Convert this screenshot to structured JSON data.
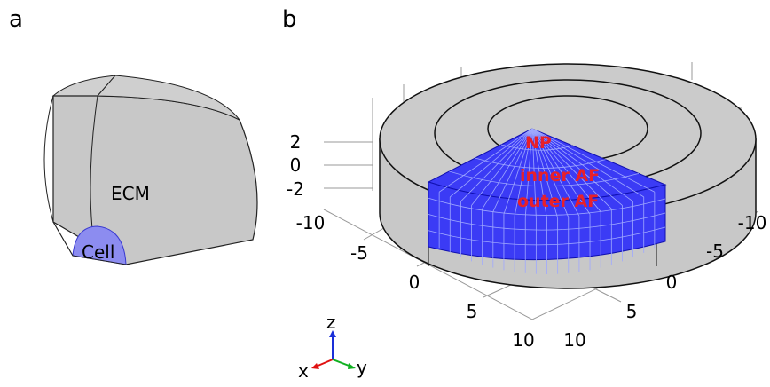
{
  "panel_a": {
    "label": "a",
    "region_outer": "ECM",
    "region_inner": "Cell"
  },
  "panel_b": {
    "label": "b",
    "regions": [
      "NP",
      "inner AF",
      "outer AF"
    ],
    "z_ticks": [
      "2",
      "0",
      "-2"
    ],
    "x_ticks": [
      "-10",
      "-5",
      "0",
      "5",
      "10"
    ],
    "y_ticks": [
      "-10",
      "-5",
      "0",
      "5",
      "10"
    ],
    "triad": [
      "z",
      "x",
      "y"
    ]
  }
}
